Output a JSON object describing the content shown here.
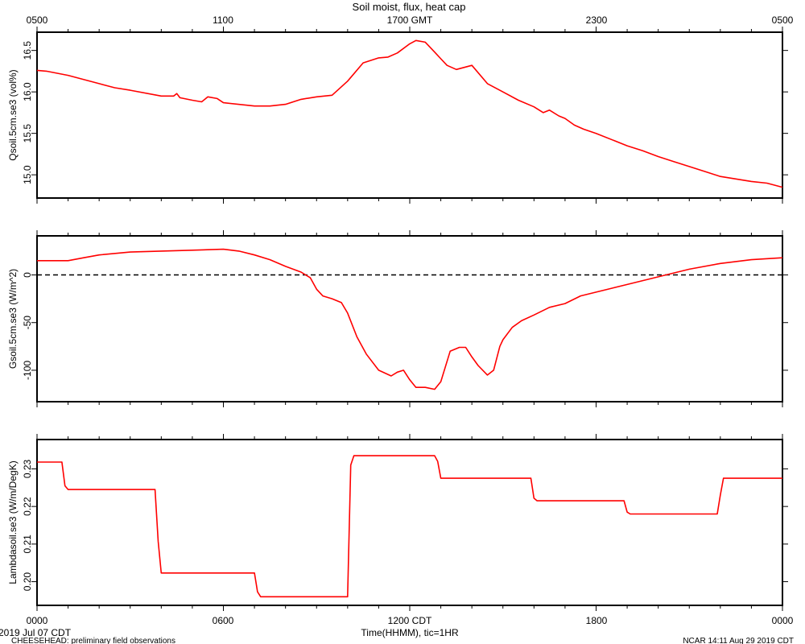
{
  "page": {
    "title": "Soil moist, flux, heat cap",
    "top_axis_ticks": [
      "0500",
      "1100",
      "1700 GMT",
      "2300",
      "0500"
    ],
    "bottom_axis_ticks": [
      "0000",
      "0600",
      "1200 CDT",
      "1800",
      "0000"
    ],
    "xlabel": "Time(HHMM), tic=1HR",
    "date_label": "2019 Jul 07 CDT",
    "project_label": "CHEESEHEAD: preliminary field observations",
    "credit_label": "NCAR 14:11 Aug 29 2019 CDT"
  },
  "colors": {
    "series": "#ff0000",
    "axis": "#000000",
    "zero_line": "#000000"
  },
  "chart_data": [
    {
      "type": "line",
      "ylabel": "Qsoil.5cm.se3 (vol%)",
      "ylim": [
        14.72,
        16.72
      ],
      "yticks": [
        15.0,
        15.5,
        16.0,
        16.5
      ],
      "ytick_labels": [
        "15.0",
        "15.5",
        "16.0",
        "16.5"
      ],
      "xlim": [
        0,
        24
      ],
      "series": [
        {
          "x": [
            0,
            0.3,
            1,
            2,
            2.5,
            3,
            4,
            4.4,
            4.5,
            4.6,
            5,
            5.3,
            5.5,
            5.8,
            6,
            7,
            7.5,
            8,
            8.5,
            9,
            9.5,
            10,
            10.5,
            11,
            11.3,
            11.6,
            12,
            12.2,
            12.5,
            12.8,
            13,
            13.2,
            13.5,
            14,
            14.5,
            15,
            15.5,
            16,
            16.3,
            16.5,
            16.8,
            17,
            17.3,
            17.6,
            18,
            19,
            19.5,
            20,
            20.5,
            21,
            21.5,
            22,
            22.5,
            23,
            23.5,
            24
          ],
          "y": [
            16.26,
            16.25,
            16.2,
            16.1,
            16.05,
            16.02,
            15.95,
            15.95,
            15.98,
            15.93,
            15.9,
            15.88,
            15.94,
            15.92,
            15.87,
            15.83,
            15.83,
            15.85,
            15.91,
            15.94,
            15.96,
            16.13,
            16.35,
            16.41,
            16.42,
            16.47,
            16.58,
            16.62,
            16.6,
            16.48,
            16.4,
            16.32,
            16.27,
            16.32,
            16.1,
            16.0,
            15.9,
            15.82,
            15.75,
            15.78,
            15.71,
            15.68,
            15.6,
            15.55,
            15.5,
            15.35,
            15.29,
            15.22,
            15.16,
            15.1,
            15.04,
            14.98,
            14.95,
            14.92,
            14.9,
            14.85
          ]
        }
      ]
    },
    {
      "type": "line",
      "ylabel": "Gsoil.5cm.se3 (W/m^2)",
      "ylim": [
        -133,
        41
      ],
      "yticks": [
        -100,
        -50,
        0
      ],
      "ytick_labels": [
        "-100",
        "-50",
        "0"
      ],
      "xlim": [
        0,
        24
      ],
      "zero_line": true,
      "series": [
        {
          "x": [
            0,
            0.5,
            1,
            1.5,
            2,
            3,
            4,
            5,
            6,
            6.5,
            7,
            7.5,
            8,
            8.5,
            8.8,
            9,
            9.2,
            9.5,
            9.8,
            10,
            10.3,
            10.6,
            11,
            11.4,
            11.6,
            11.8,
            12,
            12.2,
            12.5,
            12.8,
            13,
            13.3,
            13.6,
            13.8,
            14,
            14.2,
            14.5,
            14.7,
            14.9,
            15,
            15.3,
            15.6,
            16,
            16.5,
            17,
            17.5,
            18,
            18.5,
            19,
            19.5,
            20,
            21,
            22,
            23,
            24
          ],
          "y": [
            15,
            15,
            15,
            18,
            21,
            24,
            25,
            26,
            27,
            25,
            21,
            16,
            9,
            3,
            -3,
            -15,
            -22,
            -25,
            -29,
            -40,
            -65,
            -83,
            -100,
            -106,
            -102,
            -100,
            -110,
            -118,
            -118,
            -120,
            -112,
            -80,
            -76,
            -76,
            -86,
            -95,
            -105,
            -100,
            -75,
            -68,
            -55,
            -48,
            -42,
            -34,
            -30,
            -22,
            -18,
            -14,
            -10,
            -6,
            -2,
            6,
            12,
            16,
            18
          ]
        }
      ]
    },
    {
      "type": "line",
      "ylabel": "Lambdasoil.se3 (W/m/DegK)",
      "ylim": [
        0.1937,
        0.2378
      ],
      "yticks": [
        0.2,
        0.21,
        0.22,
        0.23
      ],
      "ytick_labels": [
        "0.20",
        "0.21",
        "0.22",
        "0.23"
      ],
      "xlim": [
        0,
        24
      ],
      "series": [
        {
          "x": [
            0,
            0.8,
            0.9,
            1,
            3.8,
            3.9,
            4,
            7,
            7.1,
            7.2,
            10,
            10.1,
            10.2,
            12.8,
            12.9,
            13,
            15.9,
            16,
            16.1,
            18.9,
            19,
            19.1,
            21.9,
            22,
            22.1,
            24
          ],
          "y": [
            0.2318,
            0.2318,
            0.2255,
            0.2245,
            0.2245,
            0.2107,
            0.2023,
            0.2023,
            0.1973,
            0.196,
            0.196,
            0.231,
            0.2335,
            0.2335,
            0.232,
            0.2275,
            0.2275,
            0.2222,
            0.2215,
            0.2215,
            0.2185,
            0.218,
            0.218,
            0.223,
            0.2275,
            0.2275
          ]
        }
      ]
    }
  ]
}
